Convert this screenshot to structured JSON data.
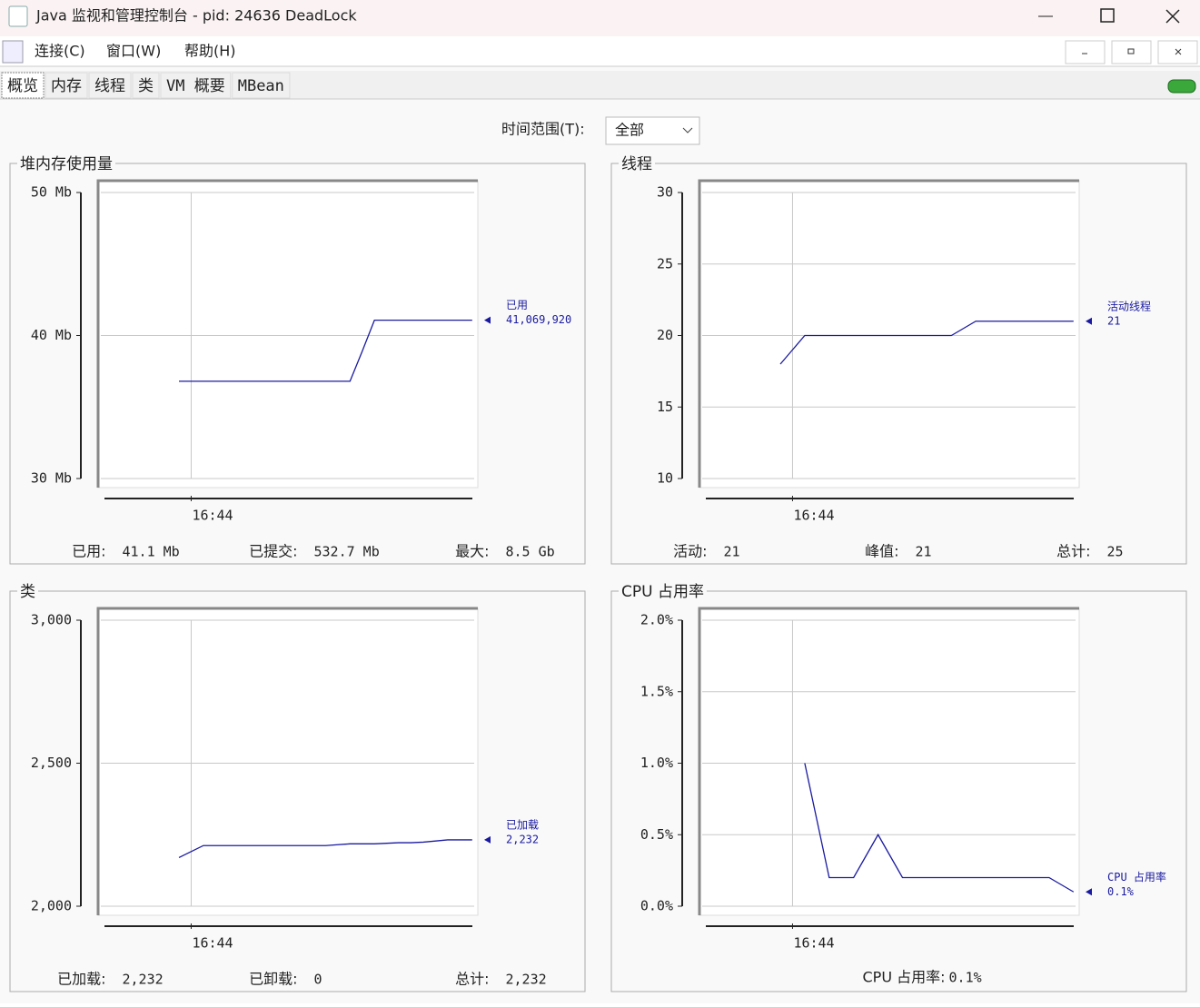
{
  "window": {
    "title": "Java 监视和管理控制台 - pid: 24636 DeadLock"
  },
  "menu": [
    "连接(C)",
    "窗口(W)",
    "帮助(H)"
  ],
  "tabs": [
    "概览",
    "内存",
    "线程",
    "类",
    "VM 概要",
    "MBean"
  ],
  "time_range": {
    "label": "时间范围(T):",
    "value": "全部"
  },
  "panels": [
    {
      "title": "堆内存使用量",
      "chart": {
        "type": "line",
        "ylim": [
          30,
          50
        ],
        "yticks": [
          {
            "value": 30,
            "label": "30 Mb"
          },
          {
            "value": 40,
            "label": "40 Mb"
          },
          {
            "value": 50,
            "label": "50 Mb"
          }
        ],
        "grid": true,
        "categories": [
          null,
          "16:44",
          null,
          null,
          null,
          null,
          null,
          null,
          null,
          null,
          null,
          null,
          null,
          null,
          null,
          null,
          null,
          null,
          null,
          null,
          null,
          null,
          null,
          null,
          null
        ],
        "series": [
          {
            "name": "已用",
            "color": "#1a1aa0",
            "values": [
              36.8,
              36.8,
              36.8,
              36.8,
              36.8,
              36.8,
              36.8,
              36.8,
              36.8,
              36.8,
              36.8,
              36.8,
              36.8,
              36.8,
              36.8,
              38.9,
              41.07,
              41.07,
              41.07,
              41.07,
              41.07,
              41.07,
              41.07,
              41.07,
              41.07
            ]
          }
        ],
        "marker_label": "41,069,920"
      },
      "footer": [
        {
          "label": "已用:",
          "value": "41.1 Mb"
        },
        {
          "label": "已提交:",
          "value": "532.7 Mb"
        },
        {
          "label": "最大:",
          "value": "8.5 Gb"
        }
      ]
    },
    {
      "title": "线程",
      "chart": {
        "type": "line",
        "ylim": [
          10,
          30
        ],
        "yticks": [
          10,
          15,
          20,
          25,
          30
        ],
        "grid": true,
        "categories": [
          null,
          "16:44",
          null,
          null,
          null,
          null,
          null,
          null,
          null,
          null,
          null,
          null,
          null,
          null,
          null,
          null,
          null,
          null,
          null,
          null,
          null,
          null,
          null,
          null,
          null
        ],
        "series": [
          {
            "name": "活动线程",
            "color": "#1a1aa0",
            "values": [
              18,
              19,
              20,
              20,
              20,
              20,
              20,
              20,
              20,
              20,
              20,
              20,
              20,
              20,
              20,
              20.5,
              21,
              21,
              21,
              21,
              21,
              21,
              21,
              21,
              21
            ]
          }
        ],
        "marker_label": "21"
      },
      "footer": [
        {
          "label": "活动:",
          "value": "21"
        },
        {
          "label": "峰值:",
          "value": "21"
        },
        {
          "label": "总计:",
          "value": "25"
        }
      ]
    },
    {
      "title": "类",
      "chart": {
        "type": "line",
        "ylim": [
          2000,
          3000
        ],
        "yticks": [
          {
            "value": 2000,
            "label": "2,000"
          },
          {
            "value": 2500,
            "label": "2,500"
          },
          {
            "value": 3000,
            "label": "3,000"
          }
        ],
        "grid": true,
        "categories": [
          null,
          "16:44",
          null,
          null,
          null,
          null,
          null,
          null,
          null,
          null,
          null,
          null,
          null,
          null,
          null,
          null,
          null,
          null,
          null,
          null,
          null,
          null,
          null,
          null,
          null
        ],
        "series": [
          {
            "name": "已加载",
            "color": "#1a1aa0",
            "values": [
              2170,
              2191,
              2212,
              2212,
              2212,
              2212,
              2212,
              2212,
              2212,
              2212,
              2212,
              2212,
              2212,
              2215,
              2218,
              2218,
              2218,
              2220,
              2222,
              2222,
              2224,
              2228,
              2232,
              2232,
              2232
            ]
          }
        ],
        "marker_label": "2,232"
      },
      "footer": [
        {
          "label": "已加载:",
          "value": "2,232"
        },
        {
          "label": "已卸载:",
          "value": "0"
        },
        {
          "label": "总计:",
          "value": "2,232"
        }
      ]
    },
    {
      "title": "CPU 占用率",
      "chart": {
        "type": "line",
        "ylim": [
          0,
          2
        ],
        "yticks": [
          {
            "value": 0,
            "label": "0.0%"
          },
          {
            "value": 0.5,
            "label": "0.5%"
          },
          {
            "value": 1,
            "label": "1.0%"
          },
          {
            "value": 1.5,
            "label": "1.5%"
          },
          {
            "value": 2,
            "label": "2.0%"
          }
        ],
        "grid": true,
        "categories": [
          null,
          "16:44",
          null,
          null,
          null,
          null,
          null,
          null,
          null,
          null,
          null,
          null,
          null,
          null,
          null,
          null,
          null,
          null,
          null,
          null,
          null,
          null,
          null,
          null,
          null
        ],
        "series": [
          {
            "name": "CPU 占用率",
            "color": "#1a1aa0",
            "values": [
              null,
              null,
              1.0,
              0.6,
              0.2,
              0.2,
              0.2,
              0.35,
              0.5,
              0.35,
              0.2,
              0.2,
              0.2,
              0.2,
              0.2,
              0.2,
              0.2,
              0.2,
              0.2,
              0.2,
              0.2,
              0.2,
              0.2,
              0.15,
              0.1
            ]
          }
        ],
        "marker_label": "0.1%"
      },
      "footer": [
        {
          "label": "CPU 占用率:",
          "value": "0.1%"
        }
      ]
    }
  ]
}
